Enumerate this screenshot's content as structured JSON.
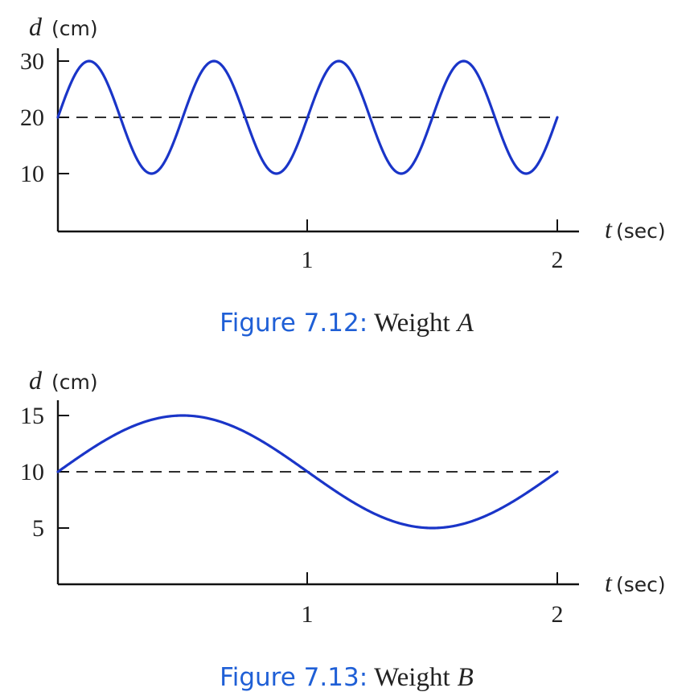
{
  "colors": {
    "curve": "#1a35c8",
    "caption_number": "#1f5fd6",
    "axis": "#111111"
  },
  "chart_data": [
    {
      "type": "line",
      "function": "d(t) = 20 + 10 sin(4 pi t)",
      "amplitude": 10,
      "midline": 20,
      "period": 0.5,
      "x": [
        0,
        0.125,
        0.25,
        0.375,
        0.5,
        0.625,
        0.75,
        0.875,
        1,
        1.125,
        1.25,
        1.375,
        1.5,
        1.625,
        1.75,
        1.875,
        2
      ],
      "series": [
        {
          "values": [
            20,
            30,
            20,
            10,
            20,
            30,
            20,
            10,
            20,
            30,
            20,
            10,
            20,
            30,
            20,
            10,
            20
          ]
        }
      ],
      "xlim": [
        0,
        2
      ],
      "ylim": [
        0,
        30
      ],
      "xticks": [
        1,
        2
      ],
      "xtick_labels": [
        "1",
        "2"
      ],
      "yticks": [
        10,
        20,
        30
      ],
      "ytick_labels": [
        "10",
        "20",
        "30"
      ],
      "ylabel_var": "d",
      "ylabel_unit": "(cm)",
      "xlabel_var": "t",
      "xlabel_unit": "(sec)",
      "dashed_midline": true,
      "caption_number": "Figure 7.12",
      "caption_sep": ":",
      "caption_text": "Weight",
      "caption_letter": "A"
    },
    {
      "type": "line",
      "function": "d(t) = 10 + 5 sin(pi t)",
      "amplitude": 5,
      "midline": 10,
      "period": 2,
      "x": [
        0,
        0.25,
        0.5,
        0.75,
        1,
        1.25,
        1.5,
        1.75,
        2
      ],
      "series": [
        {
          "values": [
            10,
            13.5,
            15,
            13.5,
            10,
            6.5,
            5,
            6.5,
            10
          ]
        }
      ],
      "xlim": [
        0,
        2
      ],
      "ylim": [
        0,
        15
      ],
      "xticks": [
        1,
        2
      ],
      "xtick_labels": [
        "1",
        "2"
      ],
      "yticks": [
        5,
        10,
        15
      ],
      "ytick_labels": [
        "5",
        "10",
        "15"
      ],
      "ylabel_var": "d",
      "ylabel_unit": "(cm)",
      "xlabel_var": "t",
      "xlabel_unit": "(sec)",
      "dashed_midline": true,
      "caption_number": "Figure 7.13",
      "caption_sep": ":",
      "caption_text": "Weight",
      "caption_letter": "B"
    }
  ]
}
